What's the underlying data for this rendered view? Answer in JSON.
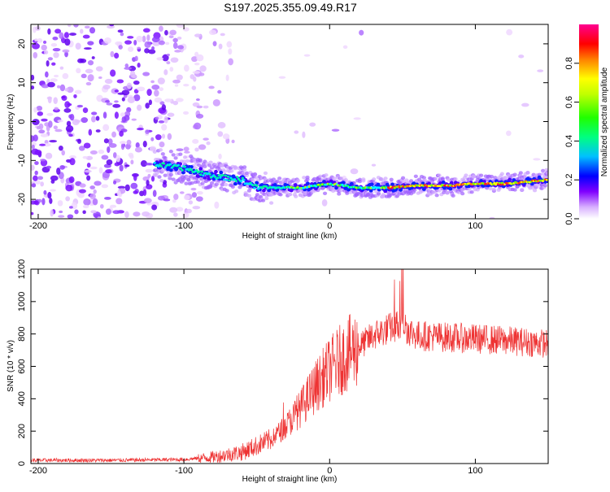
{
  "title": "S197.2025.355.09.49.R17",
  "chart_data": [
    {
      "type": "heatmap",
      "name": "spectrogram",
      "xlabel": "Height of straight line (km)",
      "ylabel": "Frequency (Hz)",
      "xlim": [
        -205,
        150
      ],
      "ylim": [
        -25,
        25
      ],
      "xticks": [
        -200,
        -100,
        0,
        100
      ],
      "yticks": [
        -20,
        -10,
        0,
        10,
        20
      ],
      "colorbar": {
        "label": "Normalized spectral amplitude",
        "range": [
          0,
          1
        ],
        "ticks": [
          0.0,
          0.2,
          0.4,
          0.6,
          0.8
        ],
        "colors": [
          "#ffffff",
          "#a000ff",
          "#0000ff",
          "#00ffff",
          "#00ff00",
          "#ffff00",
          "#ff8000",
          "#ff0000",
          "#ff0080"
        ]
      },
      "signal_track": {
        "x": [
          -120,
          -100,
          -80,
          -60,
          -50,
          -40,
          -20,
          0,
          20,
          40,
          60,
          80,
          100,
          120,
          150
        ],
        "y": [
          -11,
          -12,
          -14,
          -15,
          -17,
          -17,
          -17,
          -16,
          -17,
          -17,
          -16.5,
          -16.5,
          -16,
          -16,
          -15
        ]
      }
    },
    {
      "type": "line",
      "name": "snr",
      "xlabel": "Height of straight line (km)",
      "ylabel": "SNR (10 * v/v)",
      "xlim": [
        -205,
        150
      ],
      "ylim": [
        0,
        1200
      ],
      "xticks": [
        -200,
        -100,
        0,
        100
      ],
      "yticks": [
        0,
        200,
        400,
        600,
        800,
        1000,
        1200
      ],
      "color": "#ee3333",
      "envelope": {
        "x": [
          -205,
          -150,
          -100,
          -80,
          -60,
          -40,
          -30,
          -20,
          -10,
          0,
          10,
          20,
          30,
          40,
          45,
          50,
          55,
          60,
          80,
          100,
          120,
          150
        ],
        "y": [
          20,
          20,
          25,
          40,
          70,
          150,
          230,
          340,
          470,
          580,
          660,
          720,
          790,
          830,
          850,
          860,
          820,
          790,
          780,
          770,
          760,
          740
        ]
      }
    }
  ]
}
